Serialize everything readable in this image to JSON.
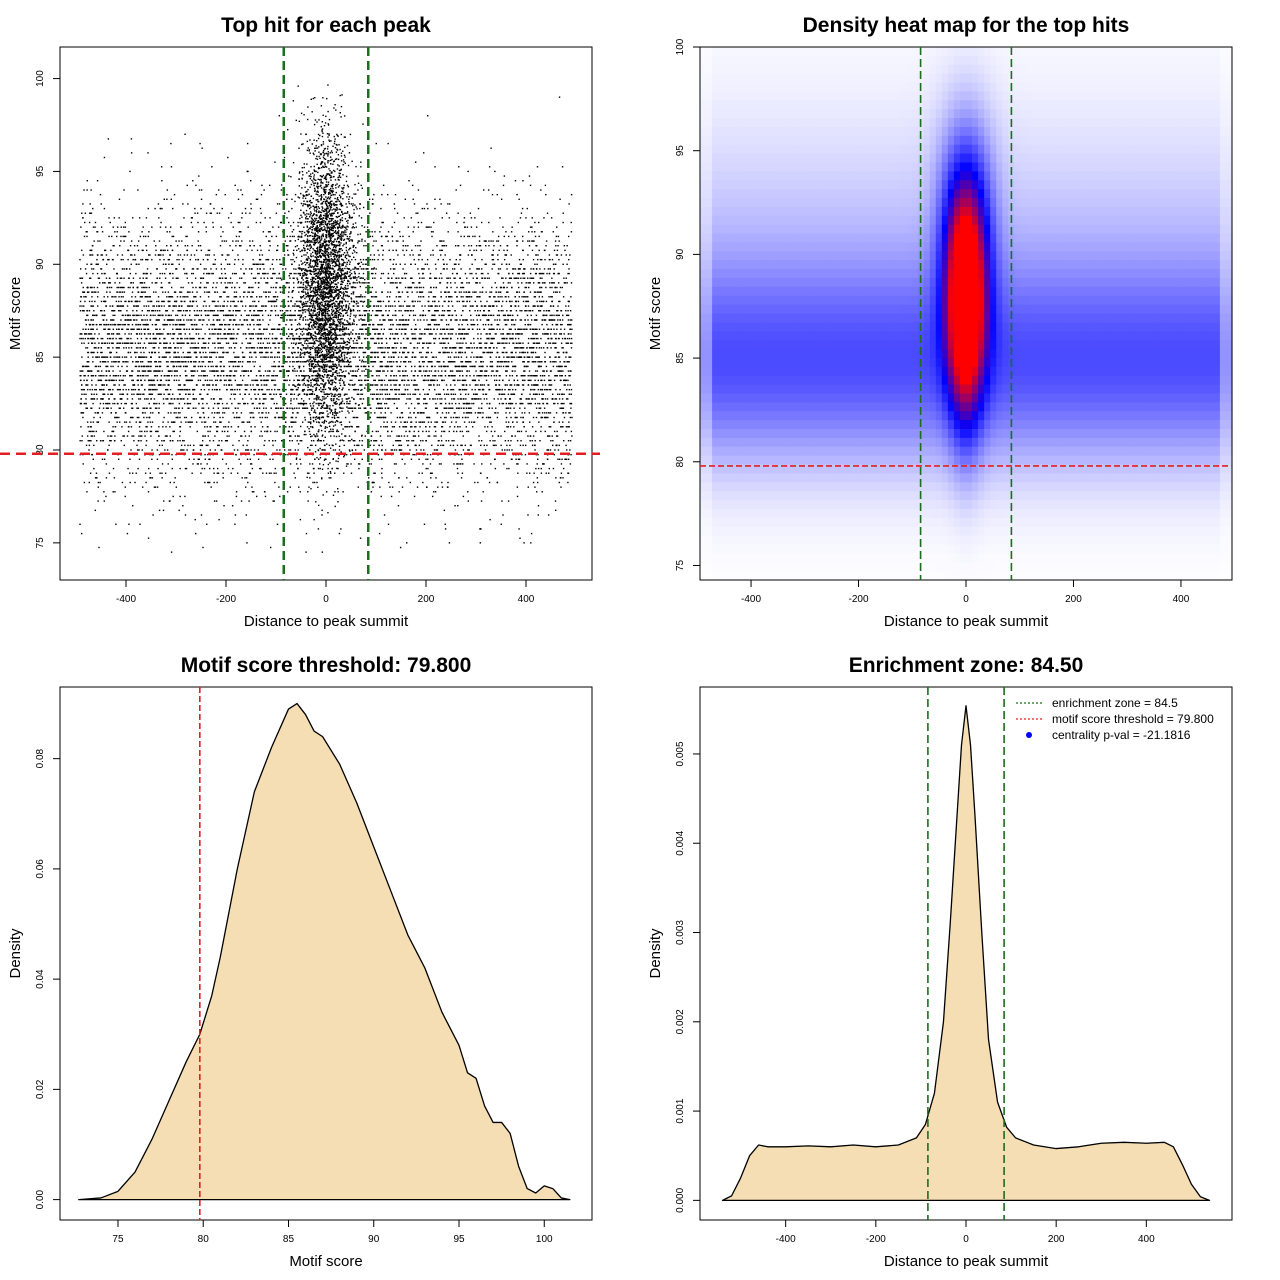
{
  "chart_data": [
    {
      "type": "scatter",
      "title": "Top hit for each peak",
      "xlabel": "Distance to peak summit",
      "ylabel": "Motif score",
      "xlim": [
        -532,
        532
      ],
      "ylim": [
        73,
        101.7
      ],
      "xticks": [
        "-400",
        "-200",
        "0",
        "200",
        "400"
      ],
      "yticks": [
        "75",
        "80",
        "85",
        "90",
        "95",
        "100"
      ],
      "vlines": [
        -84.5,
        84.5
      ],
      "hline": 79.8,
      "colors": {
        "points": "#000000",
        "vline": "#1b6e1b",
        "hline": "#e02020"
      },
      "points": {
        "n_background": 9000,
        "n_center": 3200,
        "seed": 7
      }
    },
    {
      "type": "heatmap",
      "title": "Density heat map for the top hits",
      "xlabel": "Distance to peak summit",
      "ylabel": "Motif score",
      "xlim": [
        -495,
        495
      ],
      "ylim": [
        74.3,
        100
      ],
      "xticks": [
        "-400",
        "-200",
        "0",
        "200",
        "400"
      ],
      "yticks": [
        "75",
        "80",
        "85",
        "90",
        "95",
        "100"
      ],
      "vlines": [
        -84.5,
        84.5
      ],
      "hline": 79.8,
      "colors": {
        "low": "#ffffff",
        "mid": "#0000ff",
        "high": "#ff0000",
        "vline": "#1b6e1b",
        "hline": "#e02020"
      }
    },
    {
      "type": "area",
      "title": "Motif score threshold: 79.800",
      "xlabel": "Motif score",
      "ylabel": "Density",
      "xlim": [
        71.6,
        102.8
      ],
      "ylim": [
        -0.0037,
        0.093
      ],
      "xticks": [
        "75",
        "80",
        "85",
        "90",
        "95",
        "100"
      ],
      "yticks": [
        "0.00",
        "0.02",
        "0.04",
        "0.06",
        "0.08"
      ],
      "vline": 79.8,
      "x": [
        72.7,
        74,
        75,
        76,
        77,
        78,
        79,
        79.8,
        80.5,
        81,
        82,
        83,
        84,
        85,
        85.5,
        86,
        86.5,
        87,
        88,
        89,
        90,
        91,
        92,
        93,
        94,
        95,
        95.5,
        96,
        96.5,
        97,
        97.5,
        98,
        98.5,
        99,
        99.5,
        100,
        100.5,
        101,
        101.5
      ],
      "y": [
        0,
        0.0003,
        0.0015,
        0.005,
        0.011,
        0.018,
        0.025,
        0.03,
        0.037,
        0.044,
        0.06,
        0.074,
        0.082,
        0.089,
        0.09,
        0.088,
        0.085,
        0.084,
        0.079,
        0.072,
        0.064,
        0.056,
        0.048,
        0.042,
        0.034,
        0.028,
        0.023,
        0.022,
        0.017,
        0.014,
        0.014,
        0.012,
        0.006,
        0.002,
        0.0012,
        0.0025,
        0.002,
        0.0003,
        0
      ],
      "colors": {
        "fill": "#f5deb3",
        "line": "#000000",
        "vline": "#e02020"
      }
    },
    {
      "type": "area",
      "title": "Enrichment zone: 84.50",
      "xlabel": "Distance to peak summit",
      "ylabel": "Density",
      "xlim": [
        -590,
        590
      ],
      "ylim": [
        -0.00022,
        0.00575
      ],
      "xticks": [
        "-400",
        "-200",
        "0",
        "200",
        "400"
      ],
      "yticks": [
        "0.000",
        "0.001",
        "0.002",
        "0.003",
        "0.004",
        "0.005"
      ],
      "vlines": [
        -84.5,
        84.5
      ],
      "x": [
        -540,
        -520,
        -500,
        -480,
        -460,
        -440,
        -400,
        -350,
        -300,
        -250,
        -200,
        -150,
        -110,
        -90,
        -70,
        -50,
        -35,
        -20,
        -10,
        0,
        10,
        20,
        35,
        50,
        70,
        90,
        110,
        150,
        200,
        250,
        300,
        350,
        400,
        440,
        460,
        480,
        500,
        520,
        540
      ],
      "y": [
        0,
        5e-05,
        0.00025,
        0.0005,
        0.00062,
        0.0006,
        0.0006,
        0.00061,
        0.0006,
        0.00062,
        0.0006,
        0.00062,
        0.0007,
        0.00085,
        0.0012,
        0.002,
        0.0031,
        0.0043,
        0.0051,
        0.00554,
        0.0051,
        0.0043,
        0.003,
        0.0018,
        0.0011,
        0.00082,
        0.0007,
        0.00062,
        0.00058,
        0.0006,
        0.00064,
        0.00065,
        0.00064,
        0.00065,
        0.0006,
        0.0004,
        0.00018,
        4e-05,
        0
      ],
      "legend": {
        "position": "top-right",
        "items": [
          {
            "label": "enrichment zone = 84.5",
            "kind": "line",
            "color": "#1b6e1b"
          },
          {
            "label": "motif score threshold = 79.800",
            "kind": "line",
            "color": "#e02020"
          },
          {
            "label": "centrality p-val = -21.1816",
            "kind": "point",
            "color": "#0000ff"
          }
        ]
      },
      "colors": {
        "fill": "#f5deb3",
        "line": "#000000",
        "vline": "#1b6e1b"
      }
    }
  ]
}
